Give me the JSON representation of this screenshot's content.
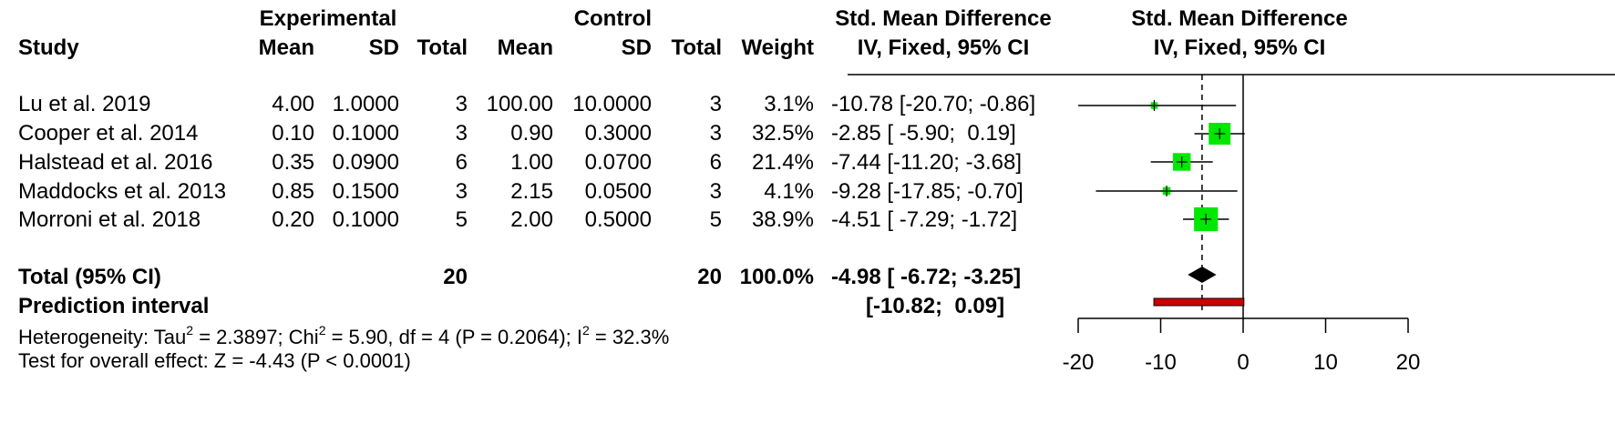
{
  "headers": {
    "group1": "Experimental",
    "group2": "Control",
    "smd_line1": "Std. Mean Difference",
    "smd_line2": "IV, Fixed, 95% CI",
    "plot_line1": "Std. Mean Difference",
    "plot_line2": "IV, Fixed, 95% CI",
    "study": "Study",
    "mean": "Mean",
    "sd": "SD",
    "total": "Total",
    "weight": "Weight"
  },
  "rows": [
    {
      "study": "Lu et al. 2019",
      "e_mean": "4.00",
      "e_sd": "1.0000",
      "e_total": "3",
      "c_mean": "100.00",
      "c_sd": "10.0000",
      "c_total": "3",
      "weight": "3.1%",
      "ci_text": "-10.78 [-20.70; -0.86]"
    },
    {
      "study": "Cooper et al. 2014",
      "e_mean": "0.10",
      "e_sd": "0.1000",
      "e_total": "3",
      "c_mean": "0.90",
      "c_sd": "0.3000",
      "c_total": "3",
      "weight": "32.5%",
      "ci_text": "-2.85 [ -5.90;  0.19]"
    },
    {
      "study": "Halstead et al. 2016",
      "e_mean": "0.35",
      "e_sd": "0.0900",
      "e_total": "6",
      "c_mean": "1.00",
      "c_sd": "0.0700",
      "c_total": "6",
      "weight": "21.4%",
      "ci_text": "-7.44 [-11.20; -3.68]"
    },
    {
      "study": "Maddocks et al. 2013",
      "e_mean": "0.85",
      "e_sd": "0.1500",
      "e_total": "3",
      "c_mean": "2.15",
      "c_sd": "0.0500",
      "c_total": "3",
      "weight": "4.1%",
      "ci_text": "-9.28 [-17.85; -0.70]"
    },
    {
      "study": "Morroni et al. 2018",
      "e_mean": "0.20",
      "e_sd": "0.1000",
      "e_total": "5",
      "c_mean": "2.00",
      "c_sd": "0.5000",
      "c_total": "5",
      "weight": "38.9%",
      "ci_text": "-4.51 [ -7.29; -1.72]"
    }
  ],
  "total_row": {
    "label": "Total (95% CI)",
    "e_total": "20",
    "c_total": "20",
    "weight": "100.0%",
    "ci_text": "-4.98 [ -6.72; -3.25]"
  },
  "prediction_row": {
    "label": "Prediction interval",
    "ci_text": "[-10.82;  0.09]"
  },
  "stats": {
    "het_a": "Heterogeneity: Tau",
    "het_sup1": "2",
    "het_b": " = 2.3897; Chi",
    "het_sup2": "2",
    "het_c": " = 5.90, df = 4 (P = 0.2064); I",
    "het_sup3": "2",
    "het_d": " = 32.3%",
    "test": "Test for overall effect: Z = -4.43 (P < 0.0001)"
  },
  "chart_data": {
    "type": "forest",
    "x_ticks": [
      -20,
      -10,
      0,
      10,
      20
    ],
    "xlim": [
      -20,
      20
    ],
    "null_line": 0,
    "pooled_line": -4.98,
    "studies": [
      {
        "name": "Lu et al. 2019",
        "estimate": -10.78,
        "lower": -20.7,
        "upper": -0.86,
        "weight": 3.1
      },
      {
        "name": "Cooper et al. 2014",
        "estimate": -2.85,
        "lower": -5.9,
        "upper": 0.19,
        "weight": 32.5
      },
      {
        "name": "Halstead et al. 2016",
        "estimate": -7.44,
        "lower": -11.2,
        "upper": -3.68,
        "weight": 21.4
      },
      {
        "name": "Maddocks et al. 2013",
        "estimate": -9.28,
        "lower": -17.85,
        "upper": -0.7,
        "weight": 4.1
      },
      {
        "name": "Morroni et al. 2018",
        "estimate": -4.51,
        "lower": -7.29,
        "upper": -1.72,
        "weight": 38.9
      }
    ],
    "pooled": {
      "estimate": -4.98,
      "lower": -6.72,
      "upper": -3.25
    },
    "prediction_interval": {
      "lower": -10.82,
      "upper": 0.09
    },
    "colors": {
      "box": "#00e800",
      "diamond": "#000000",
      "prediction": "#cc0000",
      "line": "#000000"
    }
  }
}
